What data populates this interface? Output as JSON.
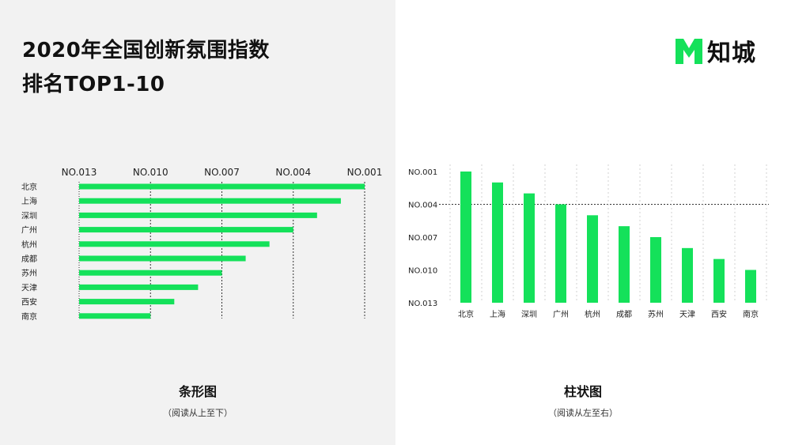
{
  "header": {
    "title_line1": "2020年全国创新氛围指数",
    "title_line2": "排名TOP1-10"
  },
  "logo": {
    "text": "知城",
    "color": "#14e15a"
  },
  "colors": {
    "bar": "#14e15a",
    "left_bg": "#f2f2f2"
  },
  "chart_data": [
    {
      "type": "bar",
      "orientation": "horizontal",
      "categories": [
        "北京",
        "上海",
        "深圳",
        "广州",
        "杭州",
        "成都",
        "苏州",
        "天津",
        "西安",
        "南京"
      ],
      "values": [
        1,
        2,
        3,
        4,
        5,
        6,
        7,
        8,
        9,
        10
      ],
      "axis_ticks": [
        "NO.013",
        "NO.010",
        "NO.007",
        "NO.004",
        "NO.001"
      ],
      "tick_values": [
        13,
        10,
        7,
        4,
        1
      ],
      "xlim": [
        13,
        1
      ],
      "caption": "条形图",
      "subcaption": "（阅读从上至下）"
    },
    {
      "type": "bar",
      "orientation": "vertical",
      "categories": [
        "北京",
        "上海",
        "深圳",
        "广州",
        "杭州",
        "成都",
        "苏州",
        "天津",
        "西安",
        "南京"
      ],
      "values": [
        1,
        2,
        3,
        4,
        5,
        6,
        7,
        8,
        9,
        10
      ],
      "axis_ticks": [
        "NO.001",
        "NO.004",
        "NO.007",
        "NO.010",
        "NO.013"
      ],
      "tick_values": [
        1,
        4,
        7,
        10,
        13
      ],
      "ylim": [
        1,
        13
      ],
      "caption": "柱状图",
      "subcaption": "（阅读从左至右）"
    }
  ]
}
